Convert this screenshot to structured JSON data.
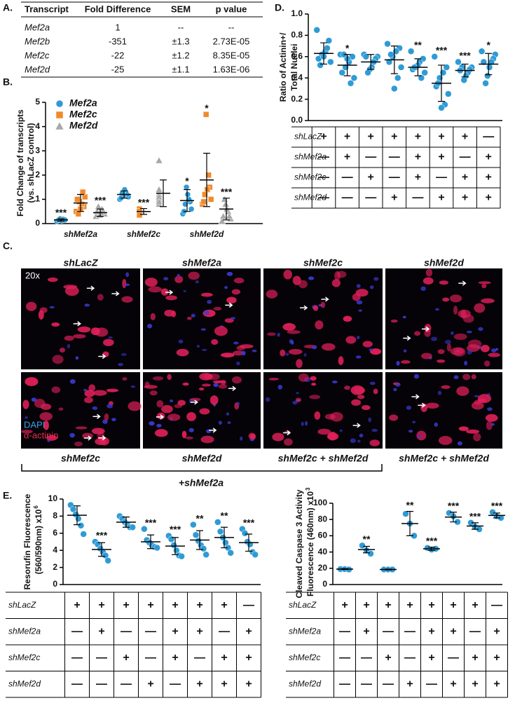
{
  "table_a": {
    "panel": "A.",
    "header": [
      "Transcript",
      "Fold Difference",
      "SEM",
      "p value"
    ],
    "rows": [
      [
        "Mef2a",
        "1",
        "--",
        "--"
      ],
      [
        "Mef2b",
        "-351",
        "±1.3",
        "2.73E-05"
      ],
      [
        "Mef2c",
        "-22",
        "±1.2",
        "8.35E-05"
      ],
      [
        "Mef2d",
        "-25",
        "±1.1",
        "1.63E-06"
      ]
    ]
  },
  "panel_c": {
    "panel": "C.",
    "column_titles": [
      "shLacZ",
      "shMef2a",
      "shMef2c",
      "shMef2d"
    ],
    "bottom_labels": [
      "shMef2c",
      "shMef2d",
      "shMef2c + shMef2d",
      "shMef2c + shMef2d"
    ],
    "bracket_label": "+shMef2a",
    "magnification": "20x",
    "stains": [
      "DAPI",
      "α-actinin"
    ]
  },
  "chart_data": [
    {
      "type": "dot",
      "panel": "B.",
      "ylabel": [
        "Fold Change of transcripts",
        "(vs. shLacZ control)"
      ],
      "categories": [
        "shMef2a",
        "shMef2c",
        "shMef2d"
      ],
      "ylim": [
        0,
        5
      ],
      "yticks": [
        0,
        1,
        2,
        3,
        4,
        5
      ],
      "series": [
        {
          "name": "Mef2a",
          "color": "#2f9bd5",
          "marker": "circle",
          "points": [
            [
              0.1,
              0.15,
              0.2,
              0.12,
              0.18,
              0.15
            ],
            [
              1.0,
              1.1,
              1.2,
              1.3,
              1.4,
              1.15,
              1.25,
              1.05
            ],
            [
              0.4,
              0.6,
              0.9,
              1.0,
              1.2,
              1.5,
              0.8,
              0.5
            ]
          ],
          "means": [
            0.15,
            1.2,
            0.95
          ],
          "sd": [
            0.05,
            0.15,
            0.45
          ],
          "stars": [
            "***",
            null,
            "*"
          ]
        },
        {
          "name": "Mef2c",
          "color": "#f08a2c",
          "marker": "square",
          "points": [
            [
              0.5,
              0.7,
              0.8,
              0.9,
              1.0,
              1.1,
              1.3,
              0.6,
              0.4
            ],
            [
              0.4,
              0.5,
              0.55,
              0.6,
              0.45,
              0.5,
              0.35
            ],
            [
              0.8,
              1.0,
              1.5,
              2.0,
              1.4,
              4.5,
              1.2,
              0.9
            ]
          ],
          "means": [
            0.85,
            0.5,
            1.8
          ],
          "sd": [
            0.35,
            0.12,
            1.1
          ],
          "stars": [
            null,
            "***",
            "*"
          ]
        },
        {
          "name": "Mef2d",
          "color": "#a8a8a8",
          "marker": "triangle",
          "points": [
            [
              0.3,
              0.4,
              0.5,
              0.6,
              0.45,
              0.35,
              0.7,
              0.5
            ],
            [
              0.8,
              1.0,
              1.2,
              1.4,
              2.6,
              1.1,
              0.9
            ],
            [
              0.1,
              0.2,
              0.3,
              0.5,
              0.6,
              0.8,
              1.0,
              0.3
            ]
          ],
          "means": [
            0.45,
            1.25,
            0.6
          ],
          "sd": [
            0.15,
            0.55,
            0.45
          ],
          "stars": [
            "***",
            null,
            "***"
          ]
        }
      ]
    },
    {
      "type": "dot",
      "panel": "D.",
      "ylabel": [
        "Ratio of Actinin+/",
        "Total Nuclei"
      ],
      "ylim": [
        0,
        1
      ],
      "yticks": [
        {
          "value": 0,
          "label": "0.0"
        },
        {
          "value": 0.2,
          "label": "0.2"
        },
        {
          "value": 0.4,
          "label": "0.4"
        },
        {
          "value": 0.6,
          "label": "0.6"
        },
        {
          "value": 0.8,
          "label": "0.8"
        },
        {
          "value": 1,
          "label": "1.0"
        }
      ],
      "series": [
        {
          "color": "#2f9bd5",
          "marker": "circle",
          "points": [
            [
              0.85,
              0.75,
              0.65,
              0.62,
              0.58,
              0.55,
              0.68,
              0.6,
              0.52
            ],
            [
              0.62,
              0.6,
              0.55,
              0.5,
              0.45,
              0.4,
              0.35,
              0.58,
              0.62
            ],
            [
              0.62,
              0.6,
              0.58,
              0.55,
              0.5,
              0.48,
              0.45,
              0.6
            ],
            [
              0.72,
              0.68,
              0.65,
              0.6,
              0.55,
              0.5,
              0.4,
              0.3,
              0.62
            ],
            [
              0.65,
              0.58,
              0.55,
              0.5,
              0.48,
              0.45,
              0.4,
              0.52,
              0.5
            ],
            [
              0.6,
              0.5,
              0.45,
              0.4,
              0.32,
              0.25,
              0.15,
              0.12,
              0.35
            ],
            [
              0.55,
              0.5,
              0.48,
              0.45,
              0.42,
              0.38,
              0.5,
              0.47
            ],
            [
              0.65,
              0.62,
              0.58,
              0.55,
              0.5,
              0.42,
              0.35,
              0.55
            ]
          ],
          "means": [
            0.63,
            0.52,
            0.55,
            0.57,
            0.5,
            0.35,
            0.47,
            0.53
          ],
          "sd": [
            0.1,
            0.1,
            0.07,
            0.13,
            0.08,
            0.17,
            0.06,
            0.1
          ],
          "stars": [
            null,
            "*",
            null,
            null,
            "**",
            "***",
            "***",
            "*"
          ]
        }
      ],
      "conditions": {
        "rows": [
          "shLacZ",
          "shMef2a",
          "shMef2c",
          "shMef2d"
        ],
        "cells": [
          [
            "+",
            "+",
            "+",
            "+",
            "+",
            "+",
            "+",
            "—"
          ],
          [
            "—",
            "+",
            "—",
            "—",
            "+",
            "+",
            "—",
            "+"
          ],
          [
            "—",
            "—",
            "+",
            "—",
            "+",
            "—",
            "+",
            "+"
          ],
          [
            "—",
            "—",
            "—",
            "+",
            "—",
            "+",
            "+",
            "+"
          ]
        ]
      }
    },
    {
      "type": "dot",
      "panel": "E.",
      "ylabel": [
        "Resorufin Fluorescence",
        "(560/590nm) x10"
      ],
      "ylabel_sup": "6",
      "ylim": [
        0,
        10
      ],
      "yticks": [
        0,
        2,
        4,
        6,
        8,
        10
      ],
      "series": [
        {
          "color": "#2f9bd5",
          "marker": "circle",
          "points": [
            [
              9.3,
              8.8,
              8.2,
              7.7,
              6.9,
              5.9
            ],
            [
              5.0,
              4.7,
              4.2,
              3.8,
              3.4,
              2.8
            ],
            [
              8.0,
              7.7,
              7.3,
              7.0,
              6.7,
              6.7
            ],
            [
              6.5,
              5.2,
              4.9,
              4.6,
              4.4,
              4.3
            ],
            [
              5.7,
              5.3,
              4.6,
              4.0,
              3.4,
              3.3
            ],
            [
              7.0,
              5.8,
              5.1,
              4.6,
              4.2,
              3.5
            ],
            [
              7.3,
              6.2,
              5.5,
              4.9,
              4.3,
              3.7
            ],
            [
              6.5,
              6.0,
              5.0,
              4.7,
              3.8,
              3.5
            ]
          ],
          "means": [
            8.1,
            4.1,
            7.3,
            5.0,
            4.5,
            5.2,
            5.5,
            4.9
          ],
          "sd": [
            1.1,
            0.8,
            0.6,
            0.8,
            1.0,
            1.1,
            1.2,
            1.0
          ],
          "stars": [
            null,
            "***",
            null,
            "***",
            "***",
            "**",
            "**",
            "***"
          ]
        }
      ],
      "conditions": {
        "rows": [
          "shLacZ",
          "shMef2a",
          "shMef2c",
          "shMef2d"
        ],
        "cells": [
          [
            "+",
            "+",
            "+",
            "+",
            "+",
            "+",
            "+",
            "—"
          ],
          [
            "—",
            "+",
            "—",
            "—",
            "+",
            "+",
            "—",
            "+"
          ],
          [
            "—",
            "—",
            "+",
            "—",
            "+",
            "—",
            "+",
            "+"
          ],
          [
            "—",
            "—",
            "—",
            "+",
            "—",
            "+",
            "+",
            "+"
          ]
        ]
      }
    },
    {
      "type": "dot",
      "ylabel": [
        "Cleaved Caspase 3 Activity",
        "Fluorescence (460nm) x10"
      ],
      "ylabel_sup": "3",
      "ylim": [
        0,
        100
      ],
      "yticks": [
        0,
        20,
        40,
        60,
        80,
        100
      ],
      "series": [
        {
          "color": "#2f9bd5",
          "marker": "circle",
          "points": [
            [
              19,
              19,
              18.5
            ],
            [
              48,
              42,
              38
            ],
            [
              18.5,
              18.5,
              18.5
            ],
            [
              87,
              75,
              60
            ],
            [
              45,
              43,
              44
            ],
            [
              88,
              84,
              77
            ],
            [
              76,
              71,
              68
            ],
            [
              89,
              84,
              82
            ]
          ],
          "means": [
            19,
            43,
            18.5,
            75,
            44,
            83,
            72,
            85
          ],
          "sd": [
            0.5,
            4,
            0.5,
            15,
            2,
            6,
            4,
            3
          ],
          "stars": [
            null,
            "**",
            null,
            "**",
            "***",
            "***",
            "***",
            "***"
          ]
        }
      ],
      "conditions": {
        "rows": [
          "shLacZ",
          "shMef2a",
          "shMef2c",
          "shMef2d"
        ],
        "cells": [
          [
            "+",
            "+",
            "+",
            "+",
            "+",
            "+",
            "+",
            "—"
          ],
          [
            "—",
            "+",
            "—",
            "—",
            "+",
            "+",
            "—",
            "+"
          ],
          [
            "—",
            "—",
            "+",
            "—",
            "+",
            "—",
            "+",
            "+"
          ],
          [
            "—",
            "—",
            "—",
            "+",
            "—",
            "+",
            "+",
            "+"
          ]
        ]
      }
    }
  ]
}
